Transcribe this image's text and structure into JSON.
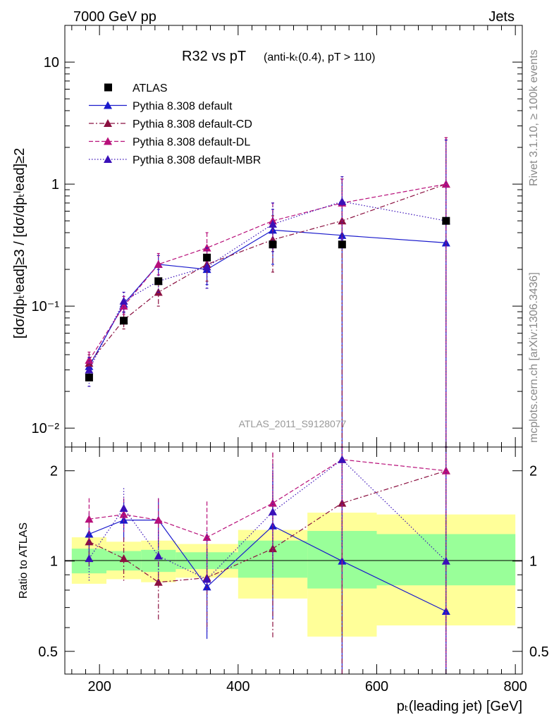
{
  "header": {
    "left": "7000 GeV pp",
    "right": "Jets"
  },
  "side_labels": {
    "rivet": "Rivet 3.1.10, ≥ 100k events",
    "source": "mcplots.cern.ch [arXiv:1306.3436]"
  },
  "chart_data": [
    {
      "type": "scatter",
      "title_main": "R32 vs pT",
      "title_sub": "(anti-kₜ(0.4), pT > 110)",
      "watermark": "ATLAS_2011_S9128077",
      "xlabel": "pₜ(leading jet) [GeV]",
      "ylabel": "[dσ/dpₜˡead]≥3 / [dσ/dpₜˡead]≥2",
      "xlim": [
        150,
        810
      ],
      "ylim": [
        0.007,
        20
      ],
      "yscale": "log",
      "x_ticks": [
        200,
        400,
        600,
        800
      ],
      "y_tick_labels": [
        "10",
        "1",
        "10⁻¹",
        "10⁻²"
      ],
      "legend_position": "top-left",
      "series": [
        {
          "name": "ATLAS",
          "color": "#000000",
          "style": "data",
          "marker": "square",
          "x": [
            185,
            235,
            285,
            355,
            450,
            550,
            700
          ],
          "y": [
            0.026,
            0.076,
            0.16,
            0.25,
            0.32,
            0.32,
            0.5
          ]
        },
        {
          "name": "Pythia 8.308 default",
          "color": "#1a1acc",
          "style": "solid",
          "marker": "triangle",
          "x": [
            185,
            235,
            285,
            355,
            450,
            550,
            700
          ],
          "y": [
            0.032,
            0.104,
            0.22,
            0.2,
            0.42,
            0.38,
            0.33
          ],
          "err_lo": [
            0.027,
            0.088,
            0.18,
            0.15,
            0.22,
            0.001,
            0.001
          ],
          "err_hi": [
            0.038,
            0.12,
            0.26,
            0.26,
            0.62,
            1.1,
            2.3
          ]
        },
        {
          "name": "Pythia 8.308 default-CD",
          "color": "#8b1040",
          "style": "dashdot",
          "marker": "triangle",
          "x": [
            185,
            235,
            285,
            355,
            450,
            550,
            700
          ],
          "y": [
            0.034,
            0.077,
            0.13,
            0.22,
            0.35,
            0.5,
            1.0
          ],
          "err_lo": [
            0.029,
            0.065,
            0.1,
            0.16,
            0.19,
            0.001,
            0.001
          ],
          "err_hi": [
            0.04,
            0.09,
            0.17,
            0.3,
            0.55,
            1.1,
            2.4
          ]
        },
        {
          "name": "Pythia 8.308 default-DL",
          "color": "#b8107a",
          "style": "dashed",
          "marker": "triangle",
          "x": [
            185,
            235,
            285,
            355,
            450,
            550,
            700
          ],
          "y": [
            0.036,
            0.1,
            0.22,
            0.3,
            0.5,
            0.7,
            1.0
          ],
          "err_lo": [
            0.031,
            0.085,
            0.18,
            0.23,
            0.3,
            0.3,
            0.001
          ],
          "err_hi": [
            0.042,
            0.12,
            0.27,
            0.4,
            0.7,
            1.1,
            2.4
          ]
        },
        {
          "name": "Pythia 8.308 default-MBR",
          "color": "#3a10b8",
          "style": "dotted",
          "marker": "triangle",
          "x": [
            185,
            235,
            285,
            355,
            450,
            550,
            700
          ],
          "y": [
            0.03,
            0.11,
            0.16,
            0.21,
            0.47,
            0.72,
            0.5
          ],
          "err_lo": [
            0.022,
            0.09,
            0.13,
            0.14,
            0.28,
            0.35,
            0.001
          ],
          "err_hi": [
            0.038,
            0.13,
            0.2,
            0.3,
            0.7,
            1.15,
            2.3
          ]
        }
      ]
    },
    {
      "type": "scatter",
      "ylabel": "Ratio to ATLAS",
      "xlim": [
        150,
        810
      ],
      "ylim": [
        0.42,
        2.4
      ],
      "yscale": "log",
      "y_ticks": [
        0.5,
        1,
        2
      ],
      "y_tick_labels": [
        "0.5",
        "1",
        "2"
      ],
      "bands": {
        "edges": [
          160,
          210,
          260,
          310,
          400,
          500,
          600,
          800
        ],
        "yellow_lo": [
          0.84,
          0.87,
          0.85,
          0.88,
          0.75,
          0.56,
          0.61
        ],
        "yellow_hi": [
          1.2,
          1.16,
          1.17,
          1.14,
          1.27,
          1.45,
          1.43
        ],
        "green_lo": [
          0.91,
          0.93,
          0.92,
          0.94,
          0.88,
          0.81,
          0.83
        ],
        "green_hi": [
          1.1,
          1.08,
          1.09,
          1.07,
          1.17,
          1.26,
          1.23
        ]
      },
      "series": [
        {
          "name": "Pythia 8.308 default",
          "color": "#1a1acc",
          "style": "solid",
          "x": [
            185,
            235,
            285,
            355,
            450,
            550,
            700
          ],
          "y": [
            1.23,
            1.37,
            1.37,
            0.82,
            1.31,
            1.0,
            0.68
          ],
          "err_lo": [
            1.02,
            1.18,
            1.1,
            0.55,
            0.64,
            0.35,
            0.35
          ],
          "err_hi": [
            1.45,
            1.58,
            1.62,
            1.1,
            2.0,
            2.4,
            2.4
          ]
        },
        {
          "name": "Pythia 8.308 default-CD",
          "color": "#8b1040",
          "style": "dashdot",
          "x": [
            185,
            235,
            285,
            355,
            450,
            550,
            700
          ],
          "y": [
            1.16,
            1.02,
            0.85,
            0.88,
            1.1,
            1.56,
            2.0
          ],
          "err_lo": [
            0.95,
            0.86,
            0.63,
            0.6,
            0.55,
            0.35,
            0.35
          ],
          "err_hi": [
            1.38,
            1.2,
            1.08,
            1.2,
            2.3,
            2.4,
            2.4
          ]
        },
        {
          "name": "Pythia 8.308 default-DL",
          "color": "#b8107a",
          "style": "dashed",
          "x": [
            185,
            235,
            285,
            355,
            450,
            550,
            700
          ],
          "y": [
            1.38,
            1.43,
            1.37,
            1.2,
            1.56,
            2.18,
            2.0
          ],
          "err_lo": [
            1.15,
            1.25,
            1.12,
            0.9,
            0.95,
            0.8,
            0.35
          ],
          "err_hi": [
            1.62,
            1.62,
            1.62,
            1.58,
            2.3,
            2.4,
            2.4
          ]
        },
        {
          "name": "Pythia 8.308 default-MBR",
          "color": "#3a10b8",
          "style": "dotted",
          "x": [
            185,
            235,
            285,
            355,
            450,
            550,
            700
          ],
          "y": [
            1.02,
            1.5,
            1.04,
            0.87,
            1.46,
            2.18,
            1.0
          ],
          "err_lo": [
            0.85,
            1.27,
            0.85,
            0.58,
            0.9,
            1.1,
            0.35
          ],
          "err_hi": [
            1.2,
            1.75,
            1.25,
            1.25,
            2.1,
            2.4,
            2.4
          ]
        }
      ]
    }
  ]
}
